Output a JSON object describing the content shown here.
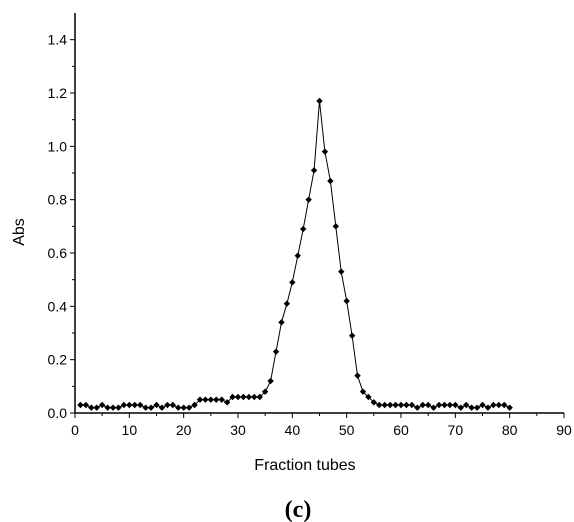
{
  "chart_data": {
    "type": "line",
    "xlabel": "Fraction tubes",
    "ylabel": "Abs",
    "caption": "(c)",
    "xlim": [
      0,
      90
    ],
    "ylim": [
      0,
      1.5
    ],
    "x_ticks": [
      0,
      10,
      20,
      30,
      40,
      50,
      60,
      70,
      80,
      90
    ],
    "y_ticks": [
      0.0,
      0.2,
      0.4,
      0.6,
      0.8,
      1.0,
      1.2,
      1.4
    ],
    "y_tick_labels": [
      "0.0",
      "0.2",
      "0.4",
      "0.6",
      "0.8",
      "1.0",
      "1.2",
      "1.4"
    ],
    "grid": false,
    "marker": "diamond",
    "color": "#000000",
    "series": [
      {
        "x": [
          1,
          2,
          3,
          4,
          5,
          6,
          7,
          8,
          9,
          10,
          11,
          12,
          13,
          14,
          15,
          16,
          17,
          18,
          19,
          20,
          21,
          22,
          23,
          24,
          25,
          26,
          27,
          28,
          29,
          30,
          31,
          32,
          33,
          34,
          35,
          36,
          37,
          38,
          39,
          40,
          41,
          42,
          43,
          44,
          45,
          46,
          47,
          48,
          49,
          50,
          51,
          52,
          53,
          54,
          55,
          56,
          57,
          58,
          59,
          60,
          61,
          62,
          63,
          64,
          65,
          66,
          67,
          68,
          69,
          70,
          71,
          72,
          73,
          74,
          75,
          76,
          77,
          78,
          79,
          80
        ],
        "values": [
          0.03,
          0.03,
          0.02,
          0.02,
          0.03,
          0.02,
          0.02,
          0.02,
          0.03,
          0.03,
          0.03,
          0.03,
          0.02,
          0.02,
          0.03,
          0.02,
          0.03,
          0.03,
          0.02,
          0.02,
          0.02,
          0.03,
          0.05,
          0.05,
          0.05,
          0.05,
          0.05,
          0.04,
          0.06,
          0.06,
          0.06,
          0.06,
          0.06,
          0.06,
          0.08,
          0.12,
          0.23,
          0.34,
          0.41,
          0.49,
          0.59,
          0.69,
          0.8,
          0.91,
          1.17,
          0.98,
          0.87,
          0.7,
          0.53,
          0.42,
          0.29,
          0.14,
          0.08,
          0.06,
          0.04,
          0.03,
          0.03,
          0.03,
          0.03,
          0.03,
          0.03,
          0.03,
          0.02,
          0.03,
          0.03,
          0.02,
          0.03,
          0.03,
          0.03,
          0.03,
          0.02,
          0.03,
          0.02,
          0.02,
          0.03,
          0.02,
          0.03,
          0.03,
          0.03,
          0.02
        ]
      }
    ]
  }
}
